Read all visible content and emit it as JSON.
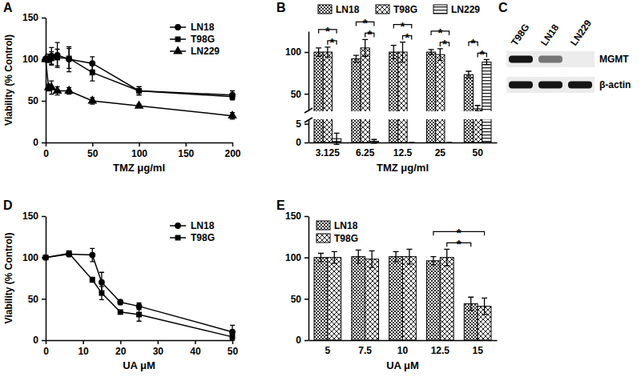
{
  "chart_data": [
    {
      "type": "line",
      "panel": "A",
      "x_label": "TMZ μg/ml",
      "y_label": "Viability (% Control)",
      "x": [
        0,
        3.125,
        6.25,
        12.5,
        25,
        50,
        100,
        200
      ],
      "xlim": [
        0,
        200
      ],
      "xticks": [
        0,
        50,
        100,
        150,
        200
      ],
      "ylim": [
        0,
        150
      ],
      "yticks": [
        0,
        50,
        100,
        150
      ],
      "legend": "top-right",
      "series": [
        {
          "name": "LN18",
          "color": "#000000",
          "marker": "circle",
          "values": [
            100,
            101,
            104,
            105,
            100,
            95,
            62,
            57
          ],
          "errors": [
            0,
            5,
            10,
            15,
            15,
            8,
            5,
            5
          ]
        },
        {
          "name": "T98G",
          "color": "#000000",
          "marker": "square",
          "values": [
            100,
            100,
            101,
            102,
            101,
            84,
            62,
            55
          ],
          "errors": [
            0,
            3,
            8,
            10,
            12,
            10,
            5,
            4
          ]
        },
        {
          "name": "LN229",
          "color": "#000000",
          "marker": "triangle",
          "values": [
            100,
            66,
            66,
            62,
            62,
            50,
            44,
            32
          ],
          "errors": [
            0,
            4,
            8,
            5,
            4,
            4,
            2,
            4
          ]
        }
      ]
    },
    {
      "type": "bar",
      "panel": "B",
      "x_label": "TMZ μg/ml",
      "categories": [
        "3.125",
        "6.25",
        "12.5",
        "25",
        "50"
      ],
      "ylim": [
        0,
        125
      ],
      "yticks": [
        0,
        5,
        50,
        100
      ],
      "ybreak": [
        6,
        30
      ],
      "legend": "top",
      "series": [
        {
          "name": "LN18",
          "color": "#000000",
          "values": [
            100,
            92,
            100,
            100,
            73
          ],
          "errors": [
            5,
            4,
            8,
            3,
            4
          ]
        },
        {
          "name": "T98G",
          "color": "#000000",
          "values": [
            100,
            105,
            100,
            97,
            32
          ],
          "errors": [
            6,
            10,
            12,
            7,
            4
          ]
        },
        {
          "name": "LN229",
          "color": "#000000",
          "values": [
            1,
            0.3,
            0,
            0,
            88
          ],
          "errors": [
            1.5,
            0.5,
            0,
            0,
            3
          ]
        }
      ],
      "annotations": [
        {
          "from": [
            "3.125",
            "LN18"
          ],
          "to": [
            "3.125",
            "LN229"
          ],
          "label": "*"
        },
        {
          "from": [
            "3.125",
            "T98G"
          ],
          "to": [
            "3.125",
            "LN229"
          ],
          "label": "*"
        },
        {
          "from": [
            "6.25",
            "LN18"
          ],
          "to": [
            "6.25",
            "LN229"
          ],
          "label": "*"
        },
        {
          "from": [
            "6.25",
            "T98G"
          ],
          "to": [
            "6.25",
            "LN229"
          ],
          "label": "*"
        },
        {
          "from": [
            "12.5",
            "LN18"
          ],
          "to": [
            "12.5",
            "LN229"
          ],
          "label": "*"
        },
        {
          "from": [
            "12.5",
            "T98G"
          ],
          "to": [
            "12.5",
            "LN229"
          ],
          "label": "*"
        },
        {
          "from": [
            "25",
            "LN18"
          ],
          "to": [
            "25",
            "LN229"
          ],
          "label": "*"
        },
        {
          "from": [
            "25",
            "T98G"
          ],
          "to": [
            "25",
            "LN229"
          ],
          "label": "*"
        },
        {
          "from": [
            "50",
            "LN18"
          ],
          "to": [
            "50",
            "T98G"
          ],
          "label": "*"
        },
        {
          "from": [
            "50",
            "T98G"
          ],
          "to": [
            "50",
            "LN229"
          ],
          "label": "*"
        }
      ]
    },
    {
      "type": "blot",
      "panel": "C",
      "lanes": [
        "T98G",
        "LN18",
        "LN229"
      ],
      "rows": [
        {
          "name": "MGMT",
          "values": [
            1,
            0.55,
            0
          ]
        },
        {
          "name": "β-actin",
          "values": [
            1,
            1,
            1
          ]
        }
      ]
    },
    {
      "type": "line",
      "panel": "D",
      "x_label": "UA μM",
      "y_label": "Viability (% Control)",
      "x": [
        0,
        6.25,
        12.5,
        15,
        20,
        25,
        50
      ],
      "xlim": [
        0,
        50
      ],
      "xticks": [
        0,
        10,
        20,
        30,
        40,
        50
      ],
      "ylim": [
        0,
        150
      ],
      "yticks": [
        0,
        50,
        100,
        150
      ],
      "legend": "top-right",
      "series": [
        {
          "name": "LN18",
          "color": "#000000",
          "marker": "circle",
          "values": [
            100,
            104,
            103,
            70,
            46,
            41,
            10
          ],
          "errors": [
            0,
            3,
            8,
            12,
            3,
            4,
            8
          ]
        },
        {
          "name": "T98G",
          "color": "#000000",
          "marker": "square",
          "values": [
            100,
            105,
            73,
            57,
            34,
            31,
            4
          ],
          "errors": [
            0,
            3,
            3,
            8,
            2,
            8,
            4
          ]
        }
      ]
    },
    {
      "type": "bar",
      "panel": "E",
      "x_label": "UA μM",
      "categories": [
        "5",
        "7.5",
        "10",
        "12.5",
        "15"
      ],
      "ylim": [
        0,
        150
      ],
      "yticks": [
        0,
        50,
        100,
        150
      ],
      "legend": "top-left",
      "series": [
        {
          "name": "LN18",
          "color": "#000000",
          "values": [
            100,
            101,
            101,
            96,
            44
          ],
          "errors": [
            5,
            8,
            6,
            5,
            8
          ]
        },
        {
          "name": "T98G",
          "color": "#000000",
          "values": [
            100,
            98,
            101,
            100,
            41
          ],
          "errors": [
            7,
            10,
            9,
            10,
            10
          ]
        }
      ],
      "annotations": [
        {
          "from": [
            "12.5",
            "LN18"
          ],
          "to": [
            "15",
            "T98G"
          ],
          "label": "*"
        },
        {
          "from": [
            "12.5",
            "T98G"
          ],
          "to": [
            "15",
            "LN18"
          ],
          "label": "*"
        }
      ]
    }
  ]
}
